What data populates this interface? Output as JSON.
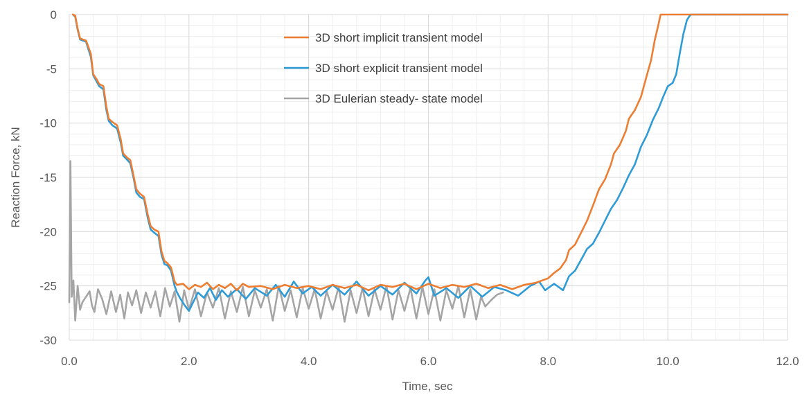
{
  "chart_data": {
    "type": "line",
    "xlabel": "Time, sec",
    "ylabel": "Reaction Force, kN",
    "xlim": [
      0,
      12
    ],
    "ylim": [
      -30,
      0
    ],
    "x_ticks": [
      "0.0",
      "2.0",
      "4.0",
      "6.0",
      "8.0",
      "10.0",
      "12.0"
    ],
    "y_ticks": [
      "0",
      "-5",
      "-10",
      "-15",
      "-20",
      "-25",
      "-30"
    ],
    "grid": true,
    "minor_grid": true,
    "legend_position": "top-center",
    "series": [
      {
        "name": "3D short implicit transient model",
        "color": "#ED7D31",
        "points": [
          [
            0.06,
            0
          ],
          [
            0.1,
            -0.1
          ],
          [
            0.14,
            -1.3
          ],
          [
            0.18,
            -2.2
          ],
          [
            0.28,
            -2.4
          ],
          [
            0.36,
            -3.6
          ],
          [
            0.4,
            -5.5
          ],
          [
            0.46,
            -6.0
          ],
          [
            0.5,
            -6.4
          ],
          [
            0.57,
            -6.6
          ],
          [
            0.62,
            -8.5
          ],
          [
            0.66,
            -9.6
          ],
          [
            0.72,
            -9.9
          ],
          [
            0.8,
            -10.2
          ],
          [
            0.86,
            -11.5
          ],
          [
            0.9,
            -12.8
          ],
          [
            0.97,
            -13.2
          ],
          [
            1.02,
            -13.4
          ],
          [
            1.08,
            -15.0
          ],
          [
            1.12,
            -16.1
          ],
          [
            1.18,
            -16.5
          ],
          [
            1.25,
            -16.8
          ],
          [
            1.31,
            -18.4
          ],
          [
            1.36,
            -19.5
          ],
          [
            1.42,
            -19.8
          ],
          [
            1.49,
            -20.0
          ],
          [
            1.54,
            -21.8
          ],
          [
            1.59,
            -22.7
          ],
          [
            1.64,
            -22.9
          ],
          [
            1.7,
            -23.3
          ],
          [
            1.76,
            -24.6
          ],
          [
            1.8,
            -24.9
          ],
          [
            1.9,
            -24.8
          ],
          [
            2.0,
            -25.3
          ],
          [
            2.1,
            -24.9
          ],
          [
            2.2,
            -25.1
          ],
          [
            2.3,
            -24.7
          ],
          [
            2.4,
            -25.3
          ],
          [
            2.5,
            -24.9
          ],
          [
            2.6,
            -25.2
          ],
          [
            2.7,
            -24.8
          ],
          [
            2.8,
            -25.4
          ],
          [
            2.9,
            -24.8
          ],
          [
            3.0,
            -25.1
          ],
          [
            3.2,
            -25.0
          ],
          [
            3.4,
            -25.3
          ],
          [
            3.6,
            -24.9
          ],
          [
            3.8,
            -25.2
          ],
          [
            4.0,
            -25.0
          ],
          [
            4.2,
            -25.3
          ],
          [
            4.4,
            -24.9
          ],
          [
            4.6,
            -25.2
          ],
          [
            4.8,
            -24.9
          ],
          [
            5.0,
            -25.4
          ],
          [
            5.2,
            -24.9
          ],
          [
            5.4,
            -25.1
          ],
          [
            5.6,
            -24.8
          ],
          [
            5.8,
            -25.3
          ],
          [
            6.0,
            -24.8
          ],
          [
            6.2,
            -25.2
          ],
          [
            6.4,
            -24.9
          ],
          [
            6.6,
            -25.1
          ],
          [
            6.8,
            -24.8
          ],
          [
            7.0,
            -25.2
          ],
          [
            7.2,
            -24.9
          ],
          [
            7.4,
            -25.3
          ],
          [
            7.6,
            -24.9
          ],
          [
            7.8,
            -24.7
          ],
          [
            8.0,
            -24.3
          ],
          [
            8.1,
            -23.8
          ],
          [
            8.2,
            -23.4
          ],
          [
            8.3,
            -22.6
          ],
          [
            8.35,
            -21.7
          ],
          [
            8.45,
            -21.2
          ],
          [
            8.55,
            -20.1
          ],
          [
            8.65,
            -19.0
          ],
          [
            8.75,
            -17.6
          ],
          [
            8.85,
            -16.1
          ],
          [
            8.95,
            -15.2
          ],
          [
            9.05,
            -13.8
          ],
          [
            9.1,
            -12.8
          ],
          [
            9.2,
            -12.0
          ],
          [
            9.3,
            -10.7
          ],
          [
            9.35,
            -9.6
          ],
          [
            9.45,
            -8.8
          ],
          [
            9.55,
            -7.6
          ],
          [
            9.6,
            -6.6
          ],
          [
            9.65,
            -5.6
          ],
          [
            9.72,
            -4.2
          ],
          [
            9.78,
            -2.4
          ],
          [
            9.84,
            -1.0
          ],
          [
            9.88,
            0
          ],
          [
            12.0,
            0
          ]
        ]
      },
      {
        "name": "3D short explicit transient model",
        "color": "#2E9BD6",
        "points": [
          [
            0.06,
            0
          ],
          [
            0.1,
            -0.2
          ],
          [
            0.14,
            -1.4
          ],
          [
            0.18,
            -2.3
          ],
          [
            0.28,
            -2.5
          ],
          [
            0.36,
            -3.9
          ],
          [
            0.4,
            -5.6
          ],
          [
            0.46,
            -6.2
          ],
          [
            0.5,
            -6.6
          ],
          [
            0.57,
            -6.9
          ],
          [
            0.62,
            -8.8
          ],
          [
            0.66,
            -9.8
          ],
          [
            0.72,
            -10.2
          ],
          [
            0.8,
            -10.5
          ],
          [
            0.86,
            -11.8
          ],
          [
            0.9,
            -13.0
          ],
          [
            0.97,
            -13.4
          ],
          [
            1.02,
            -13.7
          ],
          [
            1.08,
            -15.2
          ],
          [
            1.12,
            -16.4
          ],
          [
            1.18,
            -16.8
          ],
          [
            1.25,
            -17.0
          ],
          [
            1.31,
            -18.7
          ],
          [
            1.36,
            -19.8
          ],
          [
            1.42,
            -20.1
          ],
          [
            1.49,
            -20.4
          ],
          [
            1.54,
            -22.1
          ],
          [
            1.59,
            -23.0
          ],
          [
            1.64,
            -23.1
          ],
          [
            1.7,
            -23.6
          ],
          [
            1.76,
            -25.0
          ],
          [
            1.8,
            -25.6
          ],
          [
            1.86,
            -26.2
          ],
          [
            1.93,
            -26.8
          ],
          [
            2.0,
            -27.3
          ],
          [
            2.08,
            -26.4
          ],
          [
            2.15,
            -25.6
          ],
          [
            2.25,
            -26.1
          ],
          [
            2.35,
            -25.2
          ],
          [
            2.45,
            -26.3
          ],
          [
            2.55,
            -25.4
          ],
          [
            2.65,
            -26.0
          ],
          [
            2.8,
            -25.3
          ],
          [
            2.95,
            -26.2
          ],
          [
            3.1,
            -25.2
          ],
          [
            3.3,
            -25.9
          ],
          [
            3.45,
            -24.9
          ],
          [
            3.6,
            -26.0
          ],
          [
            3.75,
            -24.6
          ],
          [
            3.9,
            -25.7
          ],
          [
            4.05,
            -25.1
          ],
          [
            4.2,
            -25.9
          ],
          [
            4.4,
            -24.9
          ],
          [
            4.6,
            -25.8
          ],
          [
            4.8,
            -24.6
          ],
          [
            5.0,
            -25.9
          ],
          [
            5.2,
            -25.0
          ],
          [
            5.4,
            -25.8
          ],
          [
            5.6,
            -24.7
          ],
          [
            5.8,
            -25.7
          ],
          [
            5.95,
            -24.5
          ],
          [
            6.0,
            -24.2
          ],
          [
            6.1,
            -25.9
          ],
          [
            6.3,
            -25.2
          ],
          [
            6.5,
            -26.1
          ],
          [
            6.7,
            -25.0
          ],
          [
            6.9,
            -26.0
          ],
          [
            7.1,
            -25.1
          ],
          [
            7.3,
            -25.4
          ],
          [
            7.5,
            -25.9
          ],
          [
            7.7,
            -25.0
          ],
          [
            7.85,
            -24.6
          ],
          [
            7.95,
            -25.4
          ],
          [
            8.1,
            -24.8
          ],
          [
            8.25,
            -25.4
          ],
          [
            8.35,
            -24.1
          ],
          [
            8.45,
            -23.6
          ],
          [
            8.55,
            -22.6
          ],
          [
            8.65,
            -21.6
          ],
          [
            8.75,
            -21.1
          ],
          [
            8.85,
            -20.1
          ],
          [
            8.95,
            -19.0
          ],
          [
            9.05,
            -17.9
          ],
          [
            9.15,
            -17.1
          ],
          [
            9.25,
            -16.0
          ],
          [
            9.35,
            -14.8
          ],
          [
            9.45,
            -13.8
          ],
          [
            9.55,
            -12.2
          ],
          [
            9.65,
            -11.1
          ],
          [
            9.75,
            -9.7
          ],
          [
            9.85,
            -8.6
          ],
          [
            9.92,
            -7.6
          ],
          [
            10.0,
            -6.6
          ],
          [
            10.08,
            -6.3
          ],
          [
            10.14,
            -5.5
          ],
          [
            10.2,
            -3.6
          ],
          [
            10.26,
            -1.8
          ],
          [
            10.32,
            -0.5
          ],
          [
            10.38,
            0
          ],
          [
            12.0,
            0
          ]
        ]
      },
      {
        "name": "3D Eulerian steady- state model",
        "color": "#A5A5A5",
        "points": [
          [
            0.0,
            -26.5
          ],
          [
            0.02,
            -13.5
          ],
          [
            0.04,
            -26.0
          ],
          [
            0.07,
            -24.5
          ],
          [
            0.1,
            -28.2
          ],
          [
            0.14,
            -25.0
          ],
          [
            0.18,
            -27.2
          ],
          [
            0.22,
            -26.5
          ],
          [
            0.28,
            -26.0
          ],
          [
            0.34,
            -25.5
          ],
          [
            0.38,
            -26.8
          ],
          [
            0.42,
            -27.4
          ],
          [
            0.48,
            -25.3
          ],
          [
            0.55,
            -26.2
          ],
          [
            0.62,
            -27.6
          ],
          [
            0.7,
            -25.5
          ],
          [
            0.78,
            -27.4
          ],
          [
            0.85,
            -25.8
          ],
          [
            0.92,
            -28.0
          ],
          [
            0.98,
            -25.6
          ],
          [
            1.05,
            -26.8
          ],
          [
            1.12,
            -25.4
          ],
          [
            1.2,
            -27.5
          ],
          [
            1.28,
            -25.6
          ],
          [
            1.36,
            -27.0
          ],
          [
            1.44,
            -25.5
          ],
          [
            1.52,
            -27.8
          ],
          [
            1.6,
            -25.2
          ],
          [
            1.68,
            -26.9
          ],
          [
            1.76,
            -25.5
          ],
          [
            1.84,
            -28.3
          ],
          [
            1.92,
            -25.4
          ],
          [
            2.0,
            -27.2
          ],
          [
            2.1,
            -25.3
          ],
          [
            2.2,
            -27.8
          ],
          [
            2.3,
            -25.6
          ],
          [
            2.4,
            -27.0
          ],
          [
            2.5,
            -25.2
          ],
          [
            2.6,
            -28.0
          ],
          [
            2.7,
            -25.5
          ],
          [
            2.8,
            -27.4
          ],
          [
            2.9,
            -25.1
          ],
          [
            3.0,
            -27.8
          ],
          [
            3.1,
            -25.4
          ],
          [
            3.2,
            -27.0
          ],
          [
            3.3,
            -25.3
          ],
          [
            3.4,
            -28.2
          ],
          [
            3.5,
            -25.0
          ],
          [
            3.6,
            -27.3
          ],
          [
            3.7,
            -25.4
          ],
          [
            3.8,
            -27.9
          ],
          [
            3.9,
            -25.2
          ],
          [
            4.0,
            -27.1
          ],
          [
            4.1,
            -25.3
          ],
          [
            4.2,
            -28.0
          ],
          [
            4.3,
            -25.5
          ],
          [
            4.4,
            -27.2
          ],
          [
            4.5,
            -25.1
          ],
          [
            4.6,
            -28.3
          ],
          [
            4.7,
            -25.4
          ],
          [
            4.8,
            -27.5
          ],
          [
            4.9,
            -25.2
          ],
          [
            5.0,
            -27.8
          ],
          [
            5.1,
            -25.3
          ],
          [
            5.2,
            -27.2
          ],
          [
            5.3,
            -25.0
          ],
          [
            5.4,
            -28.1
          ],
          [
            5.5,
            -25.4
          ],
          [
            5.6,
            -27.3
          ],
          [
            5.7,
            -25.2
          ],
          [
            5.8,
            -28.0
          ],
          [
            5.9,
            -25.1
          ],
          [
            6.0,
            -27.6
          ],
          [
            6.1,
            -25.3
          ],
          [
            6.2,
            -28.2
          ],
          [
            6.3,
            -25.4
          ],
          [
            6.4,
            -27.1
          ],
          [
            6.5,
            -25.0
          ],
          [
            6.6,
            -27.9
          ],
          [
            6.7,
            -25.3
          ],
          [
            6.8,
            -28.1
          ],
          [
            6.88,
            -26.0
          ],
          [
            6.95,
            -26.9
          ],
          [
            7.05,
            -26.3
          ],
          [
            7.15,
            -25.8
          ],
          [
            7.25,
            -25.6
          ]
        ]
      }
    ]
  }
}
